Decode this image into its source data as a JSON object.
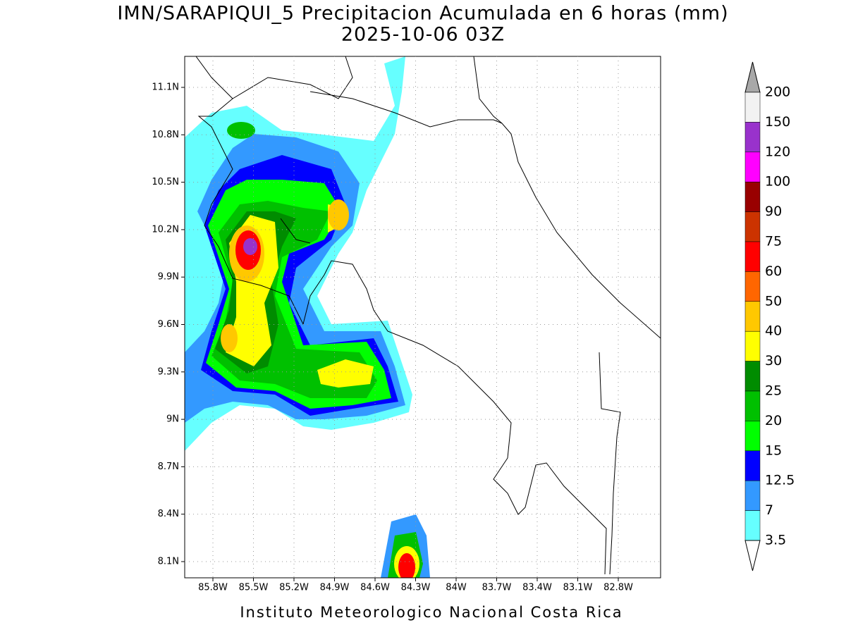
{
  "title": "IMN/SARAPIQUI_5 Precipitacion Acumulada en 6 horas (mm)",
  "subtitle": "2025-10-06 03Z",
  "map": {
    "xlabels": [
      "85.8W",
      "85.5W",
      "85.2W",
      "84.9W",
      "84.6W",
      "84.3W",
      "84W",
      "83.7W",
      "83.4W",
      "83.1W",
      "82.8W"
    ],
    "ylabels": [
      "11.1N",
      "10.8N",
      "10.5N",
      "10.2N",
      "9.9N",
      "9.6N",
      "9.3N",
      "9N",
      "8.7N",
      "8.4N",
      "8.1N"
    ]
  },
  "colorbar": {
    "labels": [
      "200",
      "150",
      "120",
      "100",
      "90",
      "75",
      "60",
      "50",
      "40",
      "30",
      "25",
      "20",
      "15",
      "12.5",
      "7",
      "3.5"
    ],
    "colors": [
      "#a8a8a8",
      "#f2f2f2",
      "#9932cc",
      "#ff00ff",
      "#990000",
      "#cc3300",
      "#ff0000",
      "#ff6600",
      "#ffc800",
      "#ffff00",
      "#008c00",
      "#00c000",
      "#00ff00",
      "#0000ff",
      "#3399ff",
      "#66ffff",
      "#ffffff"
    ]
  },
  "footer": "Instituto Meteorologico Nacional Costa Rica"
}
